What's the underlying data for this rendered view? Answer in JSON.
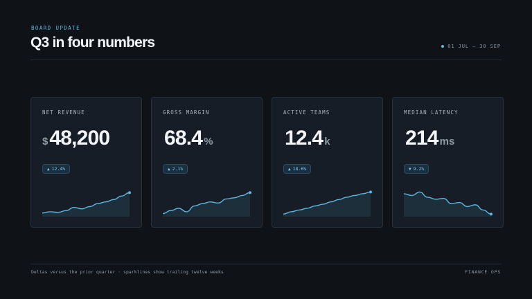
{
  "header": {
    "eyebrow": "BOARD UPDATE",
    "title": "Q3 in four numbers",
    "date_range": "01 JUL — 30 SEP"
  },
  "colors": {
    "accent": "#5eb8e0",
    "background": "#0f1318",
    "card": "#161d26"
  },
  "cards": [
    {
      "label": "NET REVENUE",
      "prefix": "$",
      "value": "48,200",
      "suffix": "",
      "delta_direction": "up",
      "delta_arrow": "▲",
      "delta": "12.4%",
      "sparkline": [
        0.08,
        0.12,
        0.1,
        0.16,
        0.27,
        0.22,
        0.3,
        0.4,
        0.46,
        0.54,
        0.66,
        0.78
      ]
    },
    {
      "label": "GROSS MARGIN",
      "prefix": "",
      "value": "68.4",
      "suffix": "%",
      "delta_direction": "up",
      "delta_arrow": "▲",
      "delta": "2.1%",
      "sparkline": [
        0.06,
        0.16,
        0.24,
        0.12,
        0.32,
        0.4,
        0.46,
        0.42,
        0.56,
        0.6,
        0.68,
        0.78
      ]
    },
    {
      "label": "ACTIVE TEAMS",
      "prefix": "",
      "value": "12.4",
      "suffix": "k",
      "delta_direction": "up",
      "delta_arrow": "▲",
      "delta": "18.6%",
      "sparkline": [
        0.04,
        0.12,
        0.18,
        0.24,
        0.32,
        0.38,
        0.46,
        0.54,
        0.62,
        0.68,
        0.74,
        0.8
      ]
    },
    {
      "label": "MEDIAN LATENCY",
      "prefix": "",
      "value": "214",
      "suffix": "ms",
      "delta_direction": "down",
      "delta_arrow": "▼",
      "delta": "9.2%",
      "sparkline": [
        0.74,
        0.68,
        0.8,
        0.62,
        0.55,
        0.58,
        0.4,
        0.44,
        0.3,
        0.36,
        0.18,
        0.04
      ]
    }
  ],
  "footer": {
    "note": "Deltas versus the prior quarter · sparklines show trailing twelve weeks",
    "brand": "FINANCE OPS"
  }
}
